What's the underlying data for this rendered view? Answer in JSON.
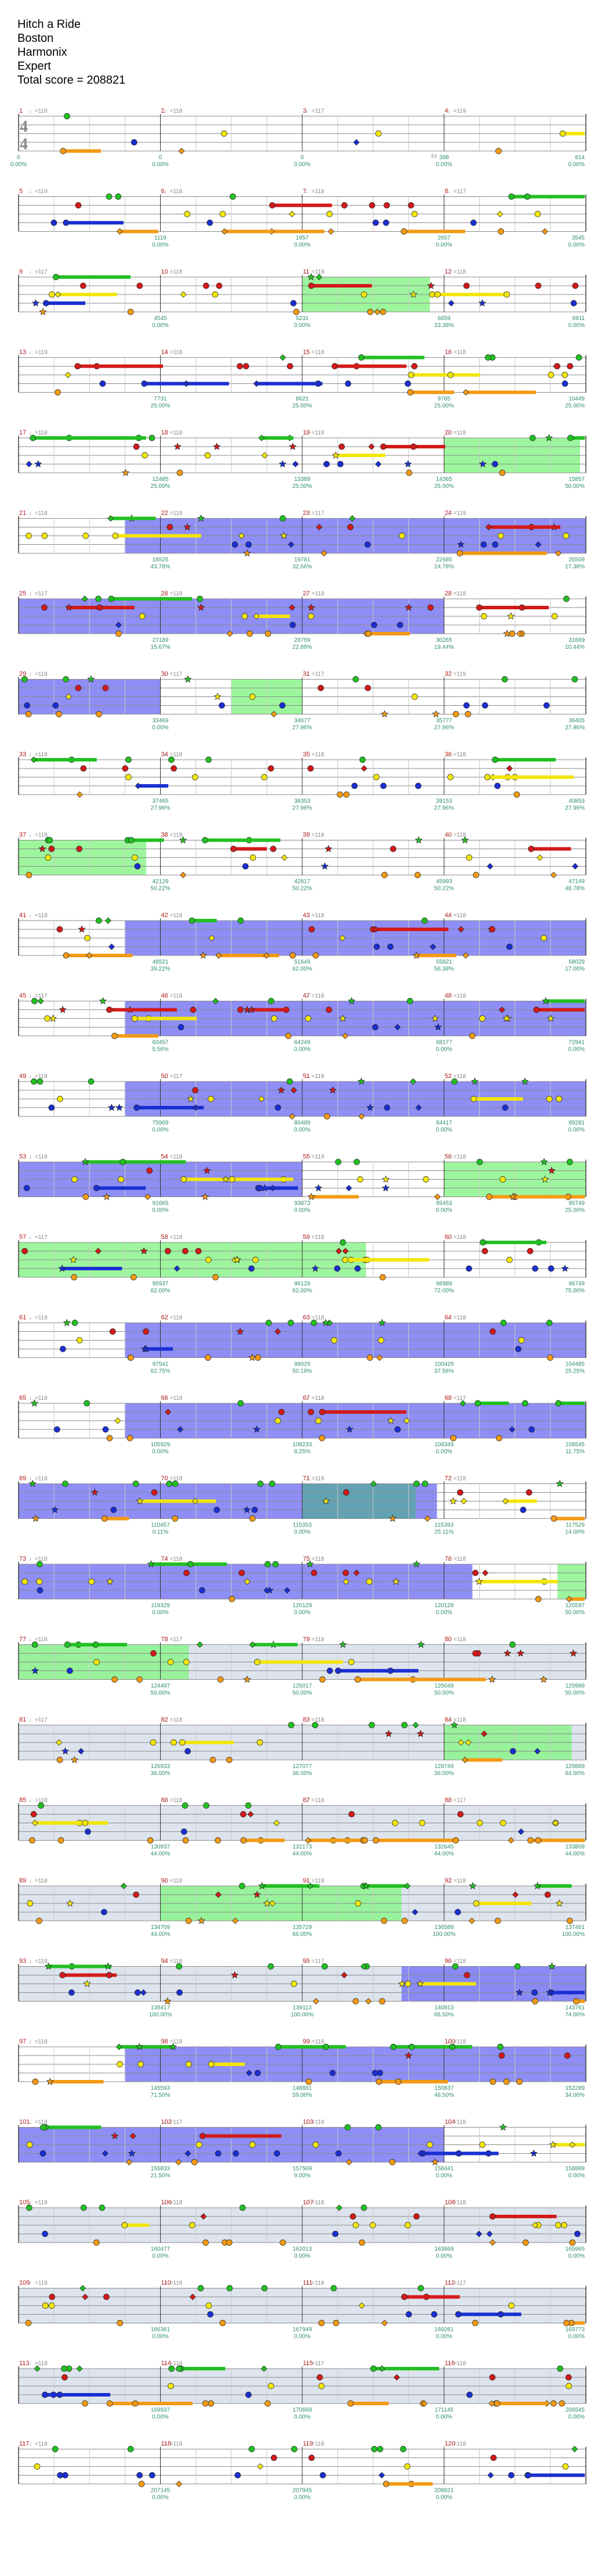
{
  "song": {
    "title": "Hitch a Ride",
    "artist": "Boston",
    "charter": "Harmonix",
    "difficulty": "Expert",
    "total_score_label": "Total score = 208821"
  },
  "colors": {
    "green": "#22c022",
    "red": "#d21a1a",
    "yellow": "#f2e60c",
    "blue": "#1a2fd2",
    "orange": "#f39a14",
    "star_power": "#8cf58c",
    "overdrive": "#7a7af5",
    "solo": "#d8dfea",
    "staff_line": "#8a8a8a",
    "measure_number": "#b31b1b",
    "score_text": "#2f8f6a"
  },
  "time_signature": {
    "top": "4",
    "bottom": "4"
  },
  "rows": [
    {
      "measures": [
        {
          "num": "1",
          "bpm": "♩=118"
        },
        {
          "num": "2",
          "bpm": "♩=118"
        },
        {
          "num": "3",
          "bpm": "♩=117"
        },
        {
          "num": "4",
          "bpm": "♩=119"
        }
      ],
      "scores": [
        "0",
        "0",
        "0",
        "398",
        "814"
      ],
      "pcts": [
        "0.00%",
        "0.00%",
        "0.00%",
        "0.00%",
        "0.00%"
      ],
      "counts": [
        "",
        "",
        "",
        "44",
        ""
      ],
      "band": "none"
    },
    {
      "measures": [
        {
          "num": "5",
          "bpm": "♩=119"
        },
        {
          "num": "6",
          "bpm": "♩=118"
        },
        {
          "num": "7",
          "bpm": "♩=118"
        },
        {
          "num": "8",
          "bpm": "♩=117"
        }
      ],
      "scores": [
        "",
        "1119",
        "1957",
        "2657",
        "3545"
      ],
      "pcts": [
        "",
        "0.00%",
        "0.00%",
        "0.00%",
        "0.00%"
      ],
      "counts": [
        "",
        "",
        "",
        "",
        ""
      ],
      "band": "none"
    },
    {
      "measures": [
        {
          "num": "9",
          "bpm": "♩=117"
        },
        {
          "num": "10",
          "bpm": "♩=118"
        },
        {
          "num": "11",
          "bpm": "♩=119"
        },
        {
          "num": "12",
          "bpm": "♩=118"
        }
      ],
      "scores": [
        "",
        "4545",
        "5231",
        "6659",
        "6911"
      ],
      "pcts": [
        "",
        "0.00%",
        "0.00%",
        "33.38%",
        "0.00%"
      ],
      "counts": [
        "",
        "",
        "",
        "",
        ""
      ],
      "band": "sp_mid"
    },
    {
      "measures": [
        {
          "num": "13",
          "bpm": "♩=119"
        },
        {
          "num": "14",
          "bpm": "♩=118"
        },
        {
          "num": "15",
          "bpm": "♩=118"
        },
        {
          "num": "16",
          "bpm": "♩=118"
        }
      ],
      "scores": [
        "",
        "7731",
        "8621",
        "9785",
        "10449"
      ],
      "pcts": [
        "",
        "25.00%",
        "25.00%",
        "25.00%",
        "25.00%"
      ],
      "counts": [
        "",
        "",
        "",
        "",
        ""
      ],
      "band": "none"
    },
    {
      "measures": [
        {
          "num": "17",
          "bpm": "♩=118"
        },
        {
          "num": "18",
          "bpm": "♩=118"
        },
        {
          "num": "19",
          "bpm": "♩=118"
        },
        {
          "num": "20",
          "bpm": "♩=118"
        }
      ],
      "scores": [
        "",
        "12485",
        "13389",
        "14365",
        "15857"
      ],
      "pcts": [
        "",
        "25.00%",
        "25.00%",
        "25.00%",
        "50.00%"
      ],
      "counts": [
        "",
        "",
        "",
        "",
        ""
      ],
      "band": "sp_end"
    },
    {
      "measures": [
        {
          "num": "21",
          "bpm": "♩=118"
        },
        {
          "num": "22",
          "bpm": "♩=118"
        },
        {
          "num": "23",
          "bpm": "♩=117"
        },
        {
          "num": "24",
          "bpm": "♩=119"
        }
      ],
      "scores": [
        "",
        "18525",
        "19781",
        "22685",
        "25509"
      ],
      "pcts": [
        "",
        "43.78%",
        "32.56%",
        "24.78%",
        "17.38%"
      ],
      "counts": [
        "",
        "",
        "",
        "",
        ""
      ],
      "band": "od_full"
    },
    {
      "measures": [
        {
          "num": "25",
          "bpm": "♩=117"
        },
        {
          "num": "26",
          "bpm": "♩=118"
        },
        {
          "num": "27",
          "bpm": "♩=118"
        },
        {
          "num": "28",
          "bpm": "♩=118"
        }
      ],
      "scores": [
        "",
        "27189",
        "28769",
        "30265",
        "31669"
      ],
      "pcts": [
        "",
        "15.67%",
        "22.89%",
        "19.44%",
        "10.44%"
      ],
      "counts": [
        "",
        "",
        "",
        "",
        ""
      ],
      "band": "od_most"
    },
    {
      "measures": [
        {
          "num": "29",
          "bpm": "♩=118"
        },
        {
          "num": "30",
          "bpm": "♩=117"
        },
        {
          "num": "31",
          "bpm": "♩=117"
        },
        {
          "num": "32",
          "bpm": "♩=119"
        }
      ],
      "scores": [
        "",
        "33469",
        "34677",
        "35777",
        "36405"
      ],
      "pcts": [
        "",
        "0.00%",
        "27.96%",
        "27.96%",
        "27.96%"
      ],
      "counts": [
        "",
        "",
        "",
        "",
        ""
      ],
      "band": "od_start"
    },
    {
      "measures": [
        {
          "num": "33",
          "bpm": "♩=118"
        },
        {
          "num": "34",
          "bpm": "♩=118"
        },
        {
          "num": "35",
          "bpm": "♩=118"
        },
        {
          "num": "36",
          "bpm": "♩=118"
        }
      ],
      "scores": [
        "",
        "37465",
        "38353",
        "39153",
        "40853"
      ],
      "pcts": [
        "",
        "27.96%",
        "27.96%",
        "27.96%",
        "27.96%"
      ],
      "counts": [
        "",
        "",
        "",
        "",
        ""
      ],
      "band": "none"
    },
    {
      "measures": [
        {
          "num": "37",
          "bpm": "♩=118"
        },
        {
          "num": "38",
          "bpm": "♩=118"
        },
        {
          "num": "39",
          "bpm": "♩=118"
        },
        {
          "num": "40",
          "bpm": "♩=118"
        }
      ],
      "scores": [
        "",
        "42129",
        "42817",
        "45993",
        "47149"
      ],
      "pcts": [
        "",
        "50.22%",
        "50.22%",
        "50.22%",
        "48.78%"
      ],
      "counts": [
        "",
        "",
        "",
        "",
        ""
      ],
      "band": "sp_start"
    },
    {
      "measures": [
        {
          "num": "41",
          "bpm": "♩=118"
        },
        {
          "num": "42",
          "bpm": "♩=118"
        },
        {
          "num": "43",
          "bpm": "♩=118"
        },
        {
          "num": "44",
          "bpm": "♩=118"
        }
      ],
      "scores": [
        "",
        "48521",
        "51649",
        "55821",
        "58029"
      ],
      "pcts": [
        "",
        "39.22%",
        "62.00%",
        "56.38%",
        "17.00%"
      ],
      "counts": [
        "",
        "",
        "",
        "",
        ""
      ],
      "band": "od_full"
    },
    {
      "measures": [
        {
          "num": "45",
          "bpm": "♩=117"
        },
        {
          "num": "46",
          "bpm": "♩=118"
        },
        {
          "num": "47",
          "bpm": "♩=118"
        },
        {
          "num": "48",
          "bpm": "♩=118"
        }
      ],
      "scores": [
        "",
        "60457",
        "64249",
        "68177",
        "72941"
      ],
      "pcts": [
        "",
        "5.56%",
        "0.00%",
        "0.00%",
        "0.00%"
      ],
      "counts": [
        "",
        "",
        "",
        "",
        ""
      ],
      "band": "od_full"
    },
    {
      "measures": [
        {
          "num": "49",
          "bpm": "♩=118"
        },
        {
          "num": "50",
          "bpm": "♩=117"
        },
        {
          "num": "51",
          "bpm": "♩=118"
        },
        {
          "num": "52",
          "bpm": "♩=118"
        }
      ],
      "scores": [
        "",
        "75969",
        "80489",
        "84417",
        "89281"
      ],
      "pcts": [
        "",
        "0.00%",
        "0.00%",
        "0.00%",
        "0.00%"
      ],
      "counts": [
        "",
        "",
        "",
        "",
        ""
      ],
      "band": "od_full"
    },
    {
      "measures": [
        {
          "num": "53",
          "bpm": "♩=118"
        },
        {
          "num": "54",
          "bpm": "♩=118"
        },
        {
          "num": "55",
          "bpm": "♩=119"
        },
        {
          "num": "56",
          "bpm": "♩=118"
        }
      ],
      "scores": [
        "",
        "91665",
        "93873",
        "95453",
        "95749"
      ],
      "pcts": [
        "",
        "0.00%",
        "0.00%",
        "0.00%",
        "25.00%"
      ],
      "counts": [
        "",
        "",
        "",
        "",
        ""
      ],
      "band": "od_half"
    },
    {
      "measures": [
        {
          "num": "57",
          "bpm": "♩=117"
        },
        {
          "num": "58",
          "bpm": "♩=118"
        },
        {
          "num": "59",
          "bpm": "♩=118"
        },
        {
          "num": "60",
          "bpm": "♩=118"
        }
      ],
      "scores": [
        "",
        "95937",
        "96129",
        "96989",
        "96749"
      ],
      "pcts": [
        "",
        "62.00%",
        "62.00%",
        "72.00%",
        "75.00%"
      ],
      "counts": [
        "",
        "",
        "",
        "",
        ""
      ],
      "band": "sp_long"
    },
    {
      "measures": [
        {
          "num": "61",
          "bpm": "♩=118"
        },
        {
          "num": "62",
          "bpm": "♩=118"
        },
        {
          "num": "63",
          "bpm": "♩=118"
        },
        {
          "num": "64",
          "bpm": "♩=118"
        }
      ],
      "scores": [
        "",
        "97541",
        "99029",
        "100429",
        "104485"
      ],
      "pcts": [
        "",
        "62.75%",
        "50.19%",
        "37.56%",
        "25.25%"
      ],
      "counts": [
        "",
        "",
        "",
        "",
        ""
      ],
      "band": "od_full"
    },
    {
      "measures": [
        {
          "num": "65",
          "bpm": "♩=118"
        },
        {
          "num": "66",
          "bpm": "♩=118"
        },
        {
          "num": "67",
          "bpm": "♩=118"
        },
        {
          "num": "68",
          "bpm": "♩=117"
        }
      ],
      "scores": [
        "",
        "105929",
        "108233",
        "108349",
        "108545"
      ],
      "pcts": [
        "",
        "0.00%",
        "8.25%",
        "0.00%",
        "11.75%"
      ],
      "counts": [
        "",
        "",
        "",
        "",
        ""
      ],
      "band": "od_full"
    },
    {
      "measures": [
        {
          "num": "69",
          "bpm": "♩=118"
        },
        {
          "num": "70",
          "bpm": "♩=118"
        },
        {
          "num": "71",
          "bpm": "♩=118"
        },
        {
          "num": "72",
          "bpm": "♩=118"
        }
      ],
      "scores": [
        "",
        "110457",
        "115353",
        "115393",
        "117529"
      ],
      "pcts": [
        "",
        "0.11%",
        "0.00%",
        "25.11%",
        "14.00%"
      ],
      "counts": [
        "",
        "",
        "",
        "",
        ""
      ],
      "band": "od_mix"
    },
    {
      "measures": [
        {
          "num": "73",
          "bpm": "♩=118"
        },
        {
          "num": "74",
          "bpm": "♩=118"
        },
        {
          "num": "75",
          "bpm": "♩=118"
        },
        {
          "num": "76",
          "bpm": "♩=118"
        }
      ],
      "scores": [
        "",
        "119329",
        "120129",
        "120129",
        "120597"
      ],
      "pcts": [
        "",
        "0.00%",
        "0.00%",
        "0.00%",
        "50.00%"
      ],
      "counts": [
        "",
        "",
        "",
        "",
        ""
      ],
      "band": "od_sp_end"
    },
    {
      "measures": [
        {
          "num": "77",
          "bpm": "♩=118"
        },
        {
          "num": "78",
          "bpm": "♩=117"
        },
        {
          "num": "79",
          "bpm": "♩=118"
        },
        {
          "num": "80",
          "bpm": "♩=118"
        }
      ],
      "scores": [
        "",
        "124497",
        "125017",
        "125049",
        "125989"
      ],
      "pcts": [
        "",
        "50.00%",
        "50.00%",
        "50.00%",
        "50.00%"
      ],
      "counts": [
        "",
        "",
        "",
        "",
        ""
      ],
      "band": "solo_sp"
    },
    {
      "measures": [
        {
          "num": "81",
          "bpm": "♩=117"
        },
        {
          "num": "82",
          "bpm": "♩=118"
        },
        {
          "num": "83",
          "bpm": "♩=118"
        },
        {
          "num": "84",
          "bpm": "♩=118"
        }
      ],
      "scores": [
        "",
        "126933",
        "127077",
        "128749",
        "129889"
      ],
      "pcts": [
        "",
        "36.00%",
        "36.00%",
        "36.00%",
        "64.00%"
      ],
      "counts": [
        "",
        "",
        "",
        "",
        ""
      ],
      "band": "solo_sp_end"
    },
    {
      "measures": [
        {
          "num": "85",
          "bpm": "♩=118"
        },
        {
          "num": "86",
          "bpm": "♩=118"
        },
        {
          "num": "87",
          "bpm": "♩=118"
        },
        {
          "num": "88",
          "bpm": "♩=117"
        }
      ],
      "scores": [
        "",
        "130937",
        "132173",
        "132645",
        "133809"
      ],
      "pcts": [
        "",
        "44.00%",
        "44.00%",
        "44.00%",
        "44.00%"
      ],
      "counts": [
        "",
        "",
        "",
        "",
        ""
      ],
      "band": "solo"
    },
    {
      "measures": [
        {
          "num": "89",
          "bpm": "♩=118"
        },
        {
          "num": "90",
          "bpm": "♩=118"
        },
        {
          "num": "91",
          "bpm": "♩=118"
        },
        {
          "num": "92",
          "bpm": "♩=118"
        }
      ],
      "scores": [
        "",
        "134709",
        "135729",
        "136589",
        "137461"
      ],
      "pcts": [
        "",
        "44.00%",
        "66.00%",
        "100.00%",
        "100.00%"
      ],
      "counts": [
        "",
        "",
        "",
        "",
        ""
      ],
      "band": "solo_sp_mid"
    },
    {
      "measures": [
        {
          "num": "93",
          "bpm": "♩=118"
        },
        {
          "num": "94",
          "bpm": "♩=118"
        },
        {
          "num": "95",
          "bpm": "♩=117"
        },
        {
          "num": "96",
          "bpm": "♩=118"
        }
      ],
      "scores": [
        "",
        "138417",
        "139113",
        "140813",
        "143761"
      ],
      "pcts": [
        "",
        "100.00%",
        "100.00%",
        "86.50%",
        "74.00%"
      ],
      "counts": [
        "",
        "",
        "",
        "",
        ""
      ],
      "band": "solo_od_end"
    },
    {
      "measures": [
        {
          "num": "97",
          "bpm": "♩=118"
        },
        {
          "num": "98",
          "bpm": "♩=118"
        },
        {
          "num": "99",
          "bpm": "♩=118"
        },
        {
          "num": "100",
          "bpm": "♩=118"
        }
      ],
      "scores": [
        "",
        "145593",
        "148881",
        "150837",
        "152289"
      ],
      "pcts": [
        "",
        "71.50%",
        "59.00%",
        "46.50%",
        "34.00%"
      ],
      "counts": [
        "",
        "",
        "",
        "",
        ""
      ],
      "band": "od_full"
    },
    {
      "measures": [
        {
          "num": "101",
          "bpm": "♩=118"
        },
        {
          "num": "102",
          "bpm": "♩=117"
        },
        {
          "num": "103",
          "bpm": "♩=118"
        },
        {
          "num": "104",
          "bpm": "♩=118"
        }
      ],
      "scores": [
        "",
        "155833",
        "157569",
        "158441",
        "158889"
      ],
      "pcts": [
        "",
        "21.50%",
        "9.00%",
        "0.00%",
        "0.00%"
      ],
      "counts": [
        "",
        "",
        "",
        "",
        ""
      ],
      "band": "od_most"
    },
    {
      "measures": [
        {
          "num": "105",
          "bpm": "♩=118"
        },
        {
          "num": "106",
          "bpm": "♩=118"
        },
        {
          "num": "107",
          "bpm": "♩=118"
        },
        {
          "num": "108",
          "bpm": "♩=118"
        }
      ],
      "scores": [
        "",
        "160477",
        "162013",
        "163869",
        "165965"
      ],
      "pcts": [
        "",
        "0.00%",
        "0.00%",
        "0.00%",
        "0.00%"
      ],
      "counts": [
        "",
        "",
        "",
        "",
        ""
      ],
      "band": "solo"
    },
    {
      "measures": [
        {
          "num": "109",
          "bpm": "♩=118"
        },
        {
          "num": "110",
          "bpm": "♩=118"
        },
        {
          "num": "111",
          "bpm": "♩=118"
        },
        {
          "num": "112",
          "bpm": "♩=117"
        }
      ],
      "scores": [
        "",
        "166361",
        "167949",
        "169261",
        "169773"
      ],
      "pcts": [
        "",
        "0.00%",
        "0.00%",
        "0.00%",
        "0.00%"
      ],
      "counts": [
        "",
        "",
        "",
        "",
        ""
      ],
      "band": "solo"
    },
    {
      "measures": [
        {
          "num": "113",
          "bpm": "♩=118"
        },
        {
          "num": "114",
          "bpm": "♩=118"
        },
        {
          "num": "115",
          "bpm": "♩=117"
        },
        {
          "num": "116",
          "bpm": "♩=118"
        }
      ],
      "scores": [
        "",
        "169937",
        "170669",
        "171145",
        "206545"
      ],
      "pcts": [
        "",
        "0.00%",
        "0.00%",
        "0.00%",
        "0.00%"
      ],
      "counts": [
        "",
        "",
        "",
        "",
        ""
      ],
      "band": "solo"
    },
    {
      "measures": [
        {
          "num": "117",
          "bpm": "♩=118"
        },
        {
          "num": "118",
          "bpm": "♩=118"
        },
        {
          "num": "119",
          "bpm": "♩=118"
        },
        {
          "num": "120",
          "bpm": "♩=118"
        }
      ],
      "scores": [
        "",
        "207145",
        "207945",
        "208821",
        ""
      ],
      "pcts": [
        "",
        "0.00%",
        "0.00%",
        "0.00%",
        ""
      ],
      "counts": [
        "",
        "",
        "",
        "",
        ""
      ],
      "band": "none"
    }
  ]
}
